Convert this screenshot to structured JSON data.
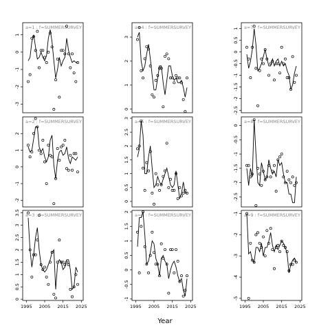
{
  "chart_data": {
    "type": "scatter",
    "xlabel": "Year",
    "x_ticks": [
      1995,
      2005,
      2015,
      2025
    ],
    "panels": [
      {
        "title": "a=1 : f=SUMMERSURVEY",
        "xlim": [
          1993,
          2026
        ],
        "ylim": [
          -3.5,
          1.7
        ],
        "yticks": [
          -3,
          -2,
          -1,
          0,
          1
        ],
        "years": [
          1996,
          1997,
          1998,
          1999,
          2000,
          2001,
          2002,
          2003,
          2004,
          2005,
          2006,
          2007,
          2008,
          2009,
          2010,
          2011,
          2012,
          2013,
          2014,
          2015,
          2016,
          2017,
          2018,
          2019,
          2020,
          2021,
          2022,
          2023
        ],
        "observed": [
          -1.7,
          -1.3,
          0.8,
          0.9,
          0.1,
          1.2,
          -0.9,
          0.1,
          0.1,
          -0.3,
          -0.6,
          0.0,
          1.1,
          0.3,
          -3.3,
          -1.6,
          -0.4,
          -2.6,
          0.1,
          0.1,
          -0.1,
          1.5,
          -0.1,
          -0.9,
          -0.1,
          -1.2,
          -1.7,
          -0.6
        ],
        "fitted": [
          -0.5,
          -0.3,
          0.6,
          1.0,
          0.3,
          -0.4,
          -0.3,
          0.0,
          -0.3,
          -0.5,
          -0.2,
          0.8,
          1.3,
          0.6,
          -0.5,
          -1.5,
          -1.0,
          -0.3,
          -0.8,
          -0.5,
          -0.3,
          0.8,
          0.1,
          -0.3,
          -0.6,
          -0.5,
          -0.6,
          -0.6
        ]
      },
      {
        "title": "a=4 : f=SUMMERSURVEY",
        "xlim": [
          1993,
          2026
        ],
        "ylim": [
          -0.15,
          3.6
        ],
        "yticks": [
          0,
          1,
          2,
          3
        ],
        "years": [
          1996,
          1997,
          1998,
          1999,
          2000,
          2001,
          2002,
          2003,
          2004,
          2005,
          2006,
          2007,
          2008,
          2009,
          2010,
          2011,
          2012,
          2013,
          2014,
          2015,
          2016,
          2017,
          2018,
          2019,
          2020,
          2021,
          2022,
          2023
        ],
        "observed": [
          2.9,
          3.4,
          1.6,
          1.3,
          2.1,
          2.6,
          2.5,
          1.8,
          0.6,
          0.5,
          1.2,
          1.4,
          1.7,
          1.7,
          0.1,
          2.2,
          2.3,
          2.1,
          1.3,
          1.3,
          1.1,
          1.4,
          1.3,
          1.3,
          1.1,
          0.4,
          -0.1,
          1.3
        ],
        "fitted": [
          3.0,
          3.2,
          2.0,
          1.6,
          1.8,
          2.3,
          2.7,
          2.1,
          1.4,
          0.8,
          0.8,
          1.3,
          1.8,
          1.8,
          1.1,
          0.6,
          1.2,
          1.8,
          1.8,
          1.4,
          1.2,
          1.3,
          1.1,
          1.1,
          1.2,
          0.9,
          0.5,
          0.9
        ]
      },
      {
        "title": "a=7 : f=SUMMERSURVEY",
        "xlim": [
          1993,
          2026
        ],
        "ylim": [
          -2.6,
          1.25
        ],
        "yticks": [
          -2.5,
          -2,
          -1.5,
          -1,
          -0.5,
          0,
          0.5,
          1
        ],
        "years": [
          1996,
          1997,
          1998,
          1999,
          2000,
          2001,
          2002,
          2003,
          2004,
          2005,
          2006,
          2007,
          2008,
          2009,
          2010,
          2011,
          2012,
          2013,
          2014,
          2015,
          2016,
          2017,
          2018,
          2019,
          2020,
          2021,
          2022,
          2023
        ],
        "observed": [
          0.2,
          -0.3,
          -1.1,
          0.2,
          1.1,
          -0.7,
          -2.3,
          -0.8,
          -0.3,
          -0.5,
          0.1,
          -0.3,
          -1.0,
          -0.5,
          -0.4,
          -1.2,
          -0.5,
          -0.5,
          -0.9,
          0.2,
          -0.5,
          -0.3,
          -1.1,
          -1.1,
          -1.6,
          -0.2,
          -1.3,
          -1.0
        ],
        "fitted": [
          -0.1,
          -0.7,
          -0.4,
          0.1,
          1.0,
          0.3,
          -0.8,
          -0.7,
          -0.5,
          -0.2,
          0.1,
          -0.3,
          -0.6,
          -0.6,
          -0.3,
          -0.6,
          -0.4,
          -0.3,
          -0.6,
          -0.4,
          -0.6,
          -0.5,
          -0.8,
          -1.0,
          -1.6,
          -1.4,
          -0.9,
          -0.6
        ]
      },
      {
        "title": "a=2 : f=SUMMERSURVEY",
        "xlim": [
          1993,
          2026
        ],
        "ylim": [
          -2.4,
          3.0
        ],
        "yticks": [
          -2,
          -1,
          0,
          1,
          2
        ],
        "years": [
          1996,
          1997,
          1998,
          1999,
          2000,
          2001,
          2002,
          2003,
          2004,
          2005,
          2006,
          2007,
          2008,
          2009,
          2010,
          2011,
          2012,
          2013,
          2014,
          2015,
          2016,
          2017,
          2018,
          2019,
          2020,
          2021,
          2022,
          2023
        ],
        "observed": [
          1.3,
          0.6,
          0.9,
          2.0,
          2.9,
          2.4,
          1.0,
          0.8,
          1.6,
          0.3,
          -1.0,
          1.3,
          0.7,
          0.6,
          -2.2,
          -0.7,
          1.1,
          0.4,
          1.2,
          1.3,
          1.6,
          -0.1,
          -0.2,
          0.7,
          -0.2,
          0.8,
          0.8,
          -0.3
        ],
        "fitted": [
          1.2,
          0.9,
          1.0,
          1.7,
          2.4,
          2.4,
          1.2,
          0.9,
          1.1,
          0.6,
          0.3,
          0.6,
          1.6,
          1.9,
          0.1,
          -0.7,
          0.4,
          0.9,
          1.0,
          0.7,
          0.8,
          1.2,
          0.5,
          0.2,
          0.6,
          0.5,
          0.4,
          0.6
        ]
      },
      {
        "title": "a=5 : f=SUMMERSURVEY",
        "xlim": [
          1993,
          2026
        ],
        "ylim": [
          -0.2,
          3.05
        ],
        "yticks": [
          0,
          0.5,
          1,
          1.5,
          2,
          2.5,
          3
        ],
        "years": [
          1996,
          1997,
          1998,
          1999,
          2000,
          2001,
          2002,
          2003,
          2004,
          2005,
          2006,
          2007,
          2008,
          2009,
          2010,
          2011,
          2012,
          2013,
          2014,
          2015,
          2016,
          2017,
          2018,
          2019,
          2020,
          2021,
          2022,
          2023
        ],
        "observed": [
          1.9,
          2.0,
          2.9,
          1.2,
          0.4,
          1.4,
          1.1,
          1.8,
          0.3,
          -0.1,
          1.0,
          0.6,
          0.4,
          0.6,
          0.9,
          1.1,
          2.1,
          0.5,
          0.8,
          0.4,
          0.4,
          1.0,
          0.1,
          0.5,
          0.2,
          0.3,
          0.4,
          0.3
        ],
        "fitted": [
          1.6,
          1.9,
          2.9,
          2.4,
          1.0,
          1.0,
          1.6,
          2.0,
          1.2,
          0.5,
          0.6,
          0.9,
          0.7,
          0.6,
          0.8,
          1.0,
          1.2,
          0.9,
          0.6,
          0.5,
          0.6,
          1.1,
          0.6,
          0.1,
          0.3,
          0.7,
          0.3,
          0.3
        ]
      },
      {
        "title": "a=8 : f=SUMMERSURVEY",
        "xlim": [
          1993,
          2026
        ],
        "ylim": [
          -2.85,
          0.3
        ],
        "yticks": [
          -2.5,
          -2,
          -1.5,
          -1,
          -0.5,
          0
        ],
        "years": [
          1996,
          1997,
          1998,
          1999,
          2000,
          2001,
          2002,
          2003,
          2004,
          2005,
          2006,
          2007,
          2008,
          2009,
          2010,
          2011,
          2012,
          2013,
          2014,
          2015,
          2016,
          2017,
          2018,
          2019,
          2020,
          2021,
          2022,
          2023
        ],
        "observed": [
          -1.4,
          -1.4,
          -1.8,
          -1.7,
          0.2,
          -2.8,
          -1.5,
          -1.7,
          -2.1,
          -1.6,
          -1.9,
          -1.8,
          -1.4,
          -1.8,
          -1.6,
          -1.4,
          -2.3,
          -1.2,
          -1.1,
          -1.0,
          -1.8,
          -2.0,
          -1.6,
          -1.9,
          -2.0,
          -1.8,
          -2.1,
          -2.0
        ],
        "fitted": [
          -1.5,
          -2.1,
          -1.5,
          -1.8,
          0.2,
          -1.0,
          -2.0,
          -2.1,
          -1.3,
          -1.6,
          -1.9,
          -1.8,
          -1.2,
          -1.5,
          -1.7,
          -1.6,
          -1.8,
          -1.2,
          -1.4,
          -1.3,
          -1.7,
          -2.0,
          -2.0,
          -2.4,
          -2.4,
          -2.7,
          -2.7,
          -1.8
        ]
      },
      {
        "title": "a=3 : f=SUMMERSURVEY",
        "xlim": [
          1993,
          2026
        ],
        "ylim": [
          -0.05,
          3.6
        ],
        "yticks": [
          0,
          0.5,
          1,
          1.5,
          2,
          2.5,
          3,
          3.5
        ],
        "years": [
          1996,
          1997,
          1998,
          1999,
          2000,
          2001,
          2002,
          2003,
          2004,
          2005,
          2006,
          2007,
          2008,
          2009,
          2010,
          2011,
          2012,
          2013,
          2014,
          2015,
          2016,
          2017,
          2018,
          2019,
          2020,
          2021,
          2022,
          2023
        ],
        "observed": [
          3.5,
          2.0,
          0.9,
          1.8,
          1.8,
          2.4,
          3.4,
          1.4,
          1.2,
          1.3,
          0.9,
          0.6,
          1.5,
          1.9,
          0.2,
          0.05,
          1.5,
          2.4,
          1.5,
          1.5,
          1.4,
          1.5,
          1.4,
          0.4,
          0.1,
          0.5,
          1.0,
          0.6
        ],
        "fitted": [
          3.3,
          2.0,
          1.3,
          1.8,
          2.5,
          2.9,
          2.0,
          1.4,
          1.2,
          1.1,
          1.2,
          1.4,
          1.6,
          1.9,
          2.0,
          0.4,
          1.4,
          1.6,
          1.5,
          1.2,
          1.3,
          1.6,
          1.6,
          1.2,
          0.4,
          0.5,
          1.3,
          1.1
        ]
      },
      {
        "title": "a=6 : f=SUMMERSURVEY",
        "xlim": [
          1993,
          2026
        ],
        "ylim": [
          -1.05,
          2.05
        ],
        "yticks": [
          -1,
          -0.5,
          0,
          0.5,
          1,
          1.5,
          2
        ],
        "years": [
          1996,
          1997,
          1998,
          1999,
          2000,
          2001,
          2002,
          2003,
          2004,
          2005,
          2006,
          2007,
          2008,
          2009,
          2010,
          2011,
          2012,
          2013,
          2014,
          2015,
          2016,
          2017,
          2018,
          2019,
          2020,
          2021,
          2022,
          2023
        ],
        "observed": [
          1.3,
          -0.1,
          1.5,
          2.0,
          0.8,
          0.2,
          -0.1,
          0.5,
          1.3,
          0.6,
          0.2,
          0.2,
          -0.2,
          0.9,
          0.4,
          0.7,
          0.2,
          -0.8,
          0.7,
          0.7,
          -0.1,
          0.7,
          0.3,
          -0.4,
          -0.2,
          -0.9,
          -0.7,
          -0.2
        ],
        "fitted": [
          0.8,
          1.8,
          1.8,
          2.0,
          1.2,
          0.2,
          0.3,
          0.6,
          1.0,
          0.9,
          0.4,
          0.2,
          -0.2,
          0.4,
          0.5,
          0.3,
          0.2,
          -0.3,
          0.0,
          0.2,
          0.3,
          0.1,
          -0.2,
          -0.4,
          -0.3,
          -0.7,
          -0.9,
          -0.3
        ]
      },
      {
        "title": "a=9 : f=SUMMERSURVEY",
        "xlim": [
          1993,
          2026
        ],
        "ylim": [
          -5.1,
          -0.85
        ],
        "yticks": [
          -5,
          -4,
          -3,
          -2,
          -1
        ],
        "years": [
          1996,
          1997,
          1998,
          1999,
          2000,
          2001,
          2002,
          2003,
          2004,
          2005,
          2006,
          2007,
          2008,
          2009,
          2010,
          2011,
          2012,
          2013,
          2014,
          2015,
          2016,
          2017,
          2018,
          2019,
          2020,
          2021,
          2022,
          2023
        ],
        "observed": [
          -1.0,
          -5.0,
          -2.4,
          -3.2,
          -3.3,
          -2.0,
          -1.9,
          -2.4,
          -2.6,
          -2.1,
          -3.0,
          -1.8,
          -2.4,
          -1.7,
          -2.7,
          -3.6,
          -2.6,
          -2.5,
          -2.8,
          -2.3,
          -2.5,
          -2.6,
          -2.8,
          -3.7,
          -3.4,
          -3.4,
          -3.2,
          -3.3
        ],
        "fitted": [
          -1.0,
          -2.9,
          -2.8,
          -3.2,
          -3.3,
          -2.6,
          -2.6,
          -2.8,
          -2.4,
          -3.0,
          -2.6,
          -2.6,
          -2.3,
          -1.9,
          -2.5,
          -2.8,
          -2.5,
          -2.7,
          -2.5,
          -2.3,
          -2.4,
          -2.6,
          -2.9,
          -3.8,
          -3.4,
          -3.2,
          -3.1,
          -3.3
        ]
      }
    ]
  }
}
